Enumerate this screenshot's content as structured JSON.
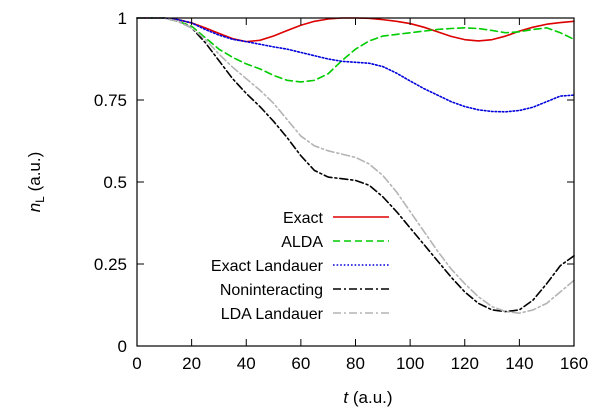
{
  "chart_data": {
    "type": "line",
    "xlabel_var": "t",
    "xlabel_unit": " (a.u.)",
    "ylabel_var": "n",
    "ylabel_sub": "L",
    "ylabel_unit": " (a.u.)",
    "xlim": [
      0,
      160
    ],
    "ylim": [
      0,
      1
    ],
    "xticks": [
      0,
      20,
      40,
      60,
      80,
      100,
      120,
      140,
      160
    ],
    "yticks": [
      0,
      0.25,
      0.5,
      0.75,
      1
    ],
    "ytick_labels": [
      "0",
      "0.25",
      "0.5",
      "0.75",
      "1"
    ],
    "grid": false,
    "legend_position": "center-bottom",
    "series": [
      {
        "name": "Exact",
        "color": "#dd0000",
        "dash": "solid",
        "x": [
          0,
          10,
          15,
          20,
          25,
          30,
          35,
          40,
          45,
          50,
          55,
          60,
          65,
          70,
          75,
          80,
          85,
          90,
          95,
          100,
          105,
          110,
          115,
          120,
          125,
          130,
          135,
          140,
          145,
          150,
          155,
          160
        ],
        "y": [
          1.0,
          1.0,
          0.995,
          0.985,
          0.97,
          0.953,
          0.937,
          0.928,
          0.932,
          0.945,
          0.962,
          0.978,
          0.99,
          0.997,
          1.0,
          1.0,
          0.999,
          0.995,
          0.99,
          0.983,
          0.972,
          0.958,
          0.944,
          0.934,
          0.93,
          0.934,
          0.945,
          0.96,
          0.972,
          0.981,
          0.986,
          0.99
        ]
      },
      {
        "name": "ALDA",
        "color": "#00cc00",
        "dash": "dashed",
        "x": [
          0,
          10,
          15,
          20,
          25,
          30,
          35,
          40,
          45,
          50,
          55,
          60,
          65,
          70,
          75,
          80,
          85,
          90,
          95,
          100,
          105,
          110,
          115,
          120,
          125,
          130,
          135,
          140,
          145,
          150,
          155,
          160
        ],
        "y": [
          1.0,
          1.0,
          0.99,
          0.975,
          0.94,
          0.905,
          0.88,
          0.86,
          0.845,
          0.825,
          0.81,
          0.805,
          0.81,
          0.83,
          0.87,
          0.905,
          0.93,
          0.945,
          0.95,
          0.955,
          0.96,
          0.965,
          0.968,
          0.97,
          0.968,
          0.962,
          0.955,
          0.958,
          0.965,
          0.97,
          0.955,
          0.935
        ]
      },
      {
        "name": "Exact Landauer",
        "color": "#0000dd",
        "dash": "dotted",
        "x": [
          0,
          10,
          15,
          20,
          25,
          30,
          35,
          40,
          45,
          50,
          55,
          60,
          65,
          70,
          75,
          80,
          85,
          90,
          95,
          100,
          105,
          110,
          115,
          120,
          125,
          130,
          135,
          140,
          145,
          150,
          155,
          160
        ],
        "y": [
          1.0,
          1.0,
          0.995,
          0.985,
          0.965,
          0.948,
          0.935,
          0.928,
          0.92,
          0.912,
          0.905,
          0.895,
          0.885,
          0.875,
          0.868,
          0.865,
          0.862,
          0.852,
          0.832,
          0.808,
          0.785,
          0.765,
          0.745,
          0.73,
          0.72,
          0.715,
          0.714,
          0.718,
          0.728,
          0.745,
          0.762,
          0.765
        ]
      },
      {
        "name": "Noninteracting",
        "color": "#000000",
        "dash": "dashdot",
        "x": [
          0,
          10,
          15,
          20,
          25,
          30,
          35,
          40,
          45,
          50,
          55,
          60,
          65,
          70,
          75,
          80,
          85,
          90,
          95,
          100,
          105,
          110,
          115,
          120,
          125,
          130,
          135,
          140,
          145,
          150,
          155,
          160
        ],
        "y": [
          1.0,
          1.0,
          0.99,
          0.97,
          0.925,
          0.87,
          0.815,
          0.77,
          0.73,
          0.685,
          0.635,
          0.58,
          0.535,
          0.515,
          0.51,
          0.505,
          0.49,
          0.455,
          0.41,
          0.36,
          0.31,
          0.26,
          0.21,
          0.165,
          0.13,
          0.11,
          0.105,
          0.11,
          0.14,
          0.19,
          0.245,
          0.275
        ]
      },
      {
        "name": "LDA Landauer",
        "color": "#b4b4b4",
        "dash": "dashdot",
        "x": [
          0,
          10,
          15,
          20,
          25,
          30,
          35,
          40,
          45,
          50,
          55,
          60,
          65,
          70,
          75,
          80,
          85,
          90,
          95,
          100,
          105,
          110,
          115,
          120,
          125,
          130,
          135,
          140,
          145,
          150,
          155,
          160
        ],
        "y": [
          1.0,
          1.0,
          0.99,
          0.97,
          0.935,
          0.89,
          0.85,
          0.815,
          0.78,
          0.74,
          0.69,
          0.64,
          0.61,
          0.595,
          0.585,
          0.575,
          0.555,
          0.52,
          0.47,
          0.41,
          0.35,
          0.29,
          0.235,
          0.19,
          0.15,
          0.12,
          0.105,
          0.1,
          0.11,
          0.13,
          0.165,
          0.2
        ]
      }
    ]
  }
}
